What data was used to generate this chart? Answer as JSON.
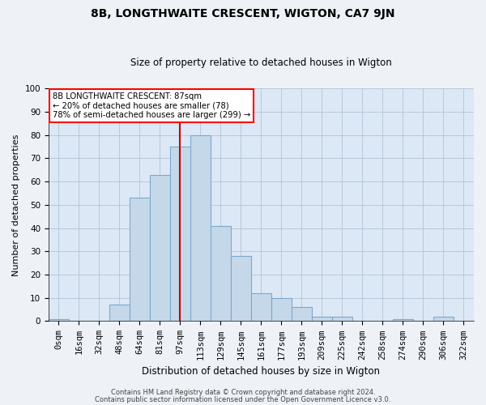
{
  "title": "8B, LONGTHWAITE CRESCENT, WIGTON, CA7 9JN",
  "subtitle": "Size of property relative to detached houses in Wigton",
  "xlabel": "Distribution of detached houses by size in Wigton",
  "ylabel": "Number of detached properties",
  "bin_labels": [
    "0sqm",
    "16sqm",
    "32sqm",
    "48sqm",
    "64sqm",
    "81sqm",
    "97sqm",
    "113sqm",
    "129sqm",
    "145sqm",
    "161sqm",
    "177sqm",
    "193sqm",
    "209sqm",
    "225sqm",
    "242sqm",
    "258sqm",
    "274sqm",
    "290sqm",
    "306sqm",
    "322sqm"
  ],
  "bar_values": [
    1,
    0,
    0,
    7,
    53,
    63,
    75,
    80,
    41,
    28,
    12,
    10,
    6,
    2,
    2,
    0,
    0,
    1,
    0,
    2,
    0
  ],
  "bar_color": "#c5d8ea",
  "bar_edge_color": "#7aaaca",
  "vline_color": "#cc0000",
  "vline_x": 6.0,
  "ylim": [
    0,
    100
  ],
  "yticks": [
    0,
    10,
    20,
    30,
    40,
    50,
    60,
    70,
    80,
    90,
    100
  ],
  "annotation_title": "8B LONGTHWAITE CRESCENT: 87sqm",
  "annotation_line1": "← 20% of detached houses are smaller (78)",
  "annotation_line2": "78% of semi-detached houses are larger (299) →",
  "footer1": "Contains HM Land Registry data © Crown copyright and database right 2024.",
  "footer2": "Contains public sector information licensed under the Open Government Licence v3.0.",
  "fig_bg_color": "#eef2f7",
  "plot_bg_color": "#dce8f5",
  "grid_color": "#b0c4d8",
  "title_fontsize": 10,
  "subtitle_fontsize": 8.5,
  "ylabel_fontsize": 8,
  "xlabel_fontsize": 8.5,
  "tick_fontsize": 7.5,
  "footer_fontsize": 6
}
